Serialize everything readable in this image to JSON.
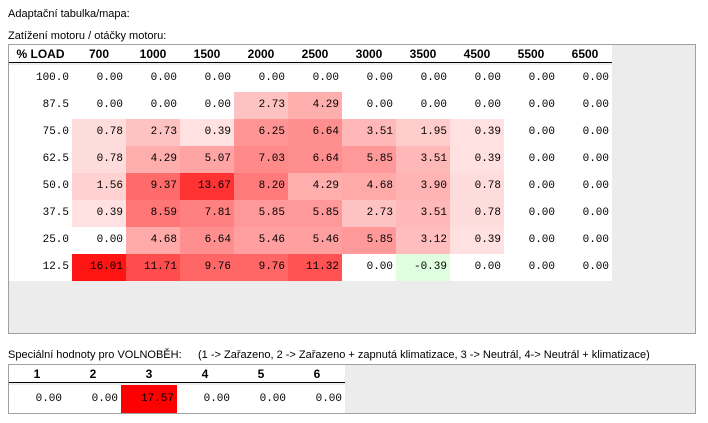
{
  "title": "Adaptační tabulka/mapa:",
  "map_label": "Zatížení motoru / otáčky motoru:",
  "corner_header": "% LOAD",
  "columns": [
    "700",
    "1000",
    "1500",
    "2000",
    "2500",
    "3000",
    "3500",
    "4500",
    "5500",
    "6500"
  ],
  "rows": [
    {
      "load": "100.0",
      "values": [
        "0.00",
        "0.00",
        "0.00",
        "0.00",
        "0.00",
        "0.00",
        "0.00",
        "0.00",
        "0.00",
        "0.00"
      ]
    },
    {
      "load": "87.5",
      "values": [
        "0.00",
        "0.00",
        "0.00",
        "2.73",
        "4.29",
        "0.00",
        "0.00",
        "0.00",
        "0.00",
        "0.00"
      ]
    },
    {
      "load": "75.0",
      "values": [
        "0.78",
        "2.73",
        "0.39",
        "6.25",
        "6.64",
        "3.51",
        "1.95",
        "0.39",
        "0.00",
        "0.00"
      ]
    },
    {
      "load": "62.5",
      "values": [
        "0.78",
        "4.29",
        "5.07",
        "7.03",
        "6.64",
        "5.85",
        "3.51",
        "0.39",
        "0.00",
        "0.00"
      ]
    },
    {
      "load": "50.0",
      "values": [
        "1.56",
        "9.37",
        "13.67",
        "8.20",
        "4.29",
        "4.68",
        "3.90",
        "0.78",
        "0.00",
        "0.00"
      ]
    },
    {
      "load": "37.5",
      "values": [
        "0.39",
        "8.59",
        "7.81",
        "5.85",
        "5.85",
        "2.73",
        "3.51",
        "0.78",
        "0.00",
        "0.00"
      ]
    },
    {
      "load": "25.0",
      "values": [
        "0.00",
        "4.68",
        "6.64",
        "5.46",
        "5.46",
        "5.85",
        "3.12",
        "0.39",
        "0.00",
        "0.00"
      ]
    },
    {
      "load": "12.5",
      "values": [
        "16.01",
        "11.71",
        "9.76",
        "9.76",
        "11.32",
        "0.00",
        "-0.39",
        "0.00",
        "0.00",
        "0.00"
      ]
    }
  ],
  "idle_label": "Speciální hodnoty pro VOLNOBĚH:",
  "idle_legend": "(1 -> Zařazeno, 2 -> Zařazeno + zapnutá klimatizace, 3 -> Neutrál, 4-> Neutrál + klimatizace)",
  "idle_columns": [
    "1",
    "2",
    "3",
    "4",
    "5",
    "6"
  ],
  "idle_values": [
    "0.00",
    "0.00",
    "17.57",
    "0.00",
    "0.00",
    "0.00"
  ],
  "colors": {
    "positive_max": "#ff0000",
    "negative": "#e0ffe0",
    "zero": "#ffffff",
    "panel": "#ececec"
  }
}
